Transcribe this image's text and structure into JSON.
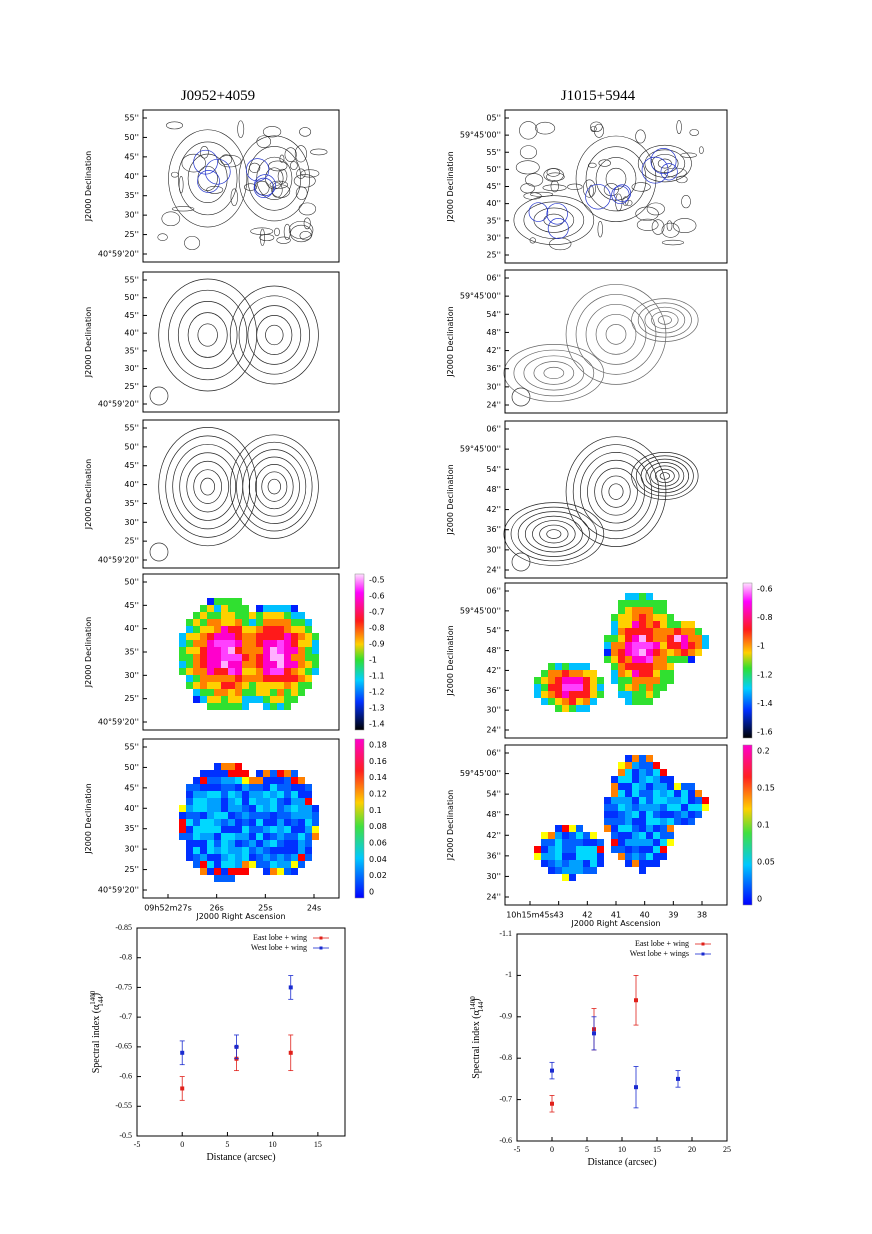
{
  "columns": [
    {
      "title": "J0952+4059",
      "panels": [
        {
          "y_label": "J2000 Declination",
          "y_ticks": [
            "55''",
            "50''",
            "45''",
            "40''",
            "35''",
            "30''",
            "25''",
            "40°59'20''"
          ]
        },
        {
          "y_label": "J2000 Declination",
          "y_ticks": [
            "55''",
            "50''",
            "45''",
            "40''",
            "35''",
            "30''",
            "25''",
            "40°59'20''"
          ]
        },
        {
          "y_label": "J2000 Declination",
          "y_ticks": [
            "55''",
            "50''",
            "45''",
            "40''",
            "35''",
            "30''",
            "25''",
            "40°59'20''"
          ]
        },
        {
          "y_label": "J2000 Declination",
          "y_ticks": [
            "50''",
            "45''",
            "40''",
            "35''",
            "30''",
            "25''",
            "40°59'20''"
          ],
          "colorbar": [
            "-0.5",
            "-0.6",
            "-0.7",
            "-0.8",
            "-0.9",
            "-1",
            "-1.1",
            "-1.2",
            "-1.3",
            "-1.4"
          ]
        },
        {
          "y_label": "J2000 Declination",
          "y_ticks": [
            "55''",
            "50''",
            "45''",
            "40''",
            "35''",
            "30''",
            "25''",
            "40°59'20''"
          ],
          "colorbar": [
            "0.18",
            "0.16",
            "0.14",
            "0.12",
            "0.1",
            "0.08",
            "0.06",
            "0.04",
            "0.02",
            "0"
          ],
          "x_ticks": [
            "09h52m27s",
            "26s",
            "25s",
            "24s"
          ],
          "x_label": "J2000 Right Ascension"
        }
      ]
    },
    {
      "title": "J1015+5944",
      "panels": [
        {
          "y_label": "J2000 Declination",
          "y_ticks": [
            "05''",
            "59°45'00''",
            "55''",
            "50''",
            "45''",
            "40''",
            "35''",
            "30''",
            "25''"
          ]
        },
        {
          "y_label": "J2000 Declination",
          "y_ticks": [
            "06''",
            "59°45'00''",
            "54''",
            "48''",
            "42''",
            "36''",
            "30''",
            "24''"
          ]
        },
        {
          "y_label": "J2000 Declination",
          "y_ticks": [
            "06''",
            "59°45'00''",
            "54''",
            "48''",
            "42''",
            "36''",
            "30''",
            "24''"
          ]
        },
        {
          "y_label": "J2000 Declination",
          "y_ticks": [
            "06''",
            "59°45'00''",
            "54''",
            "48''",
            "42''",
            "36''",
            "30''",
            "24''"
          ],
          "colorbar": [
            "-0.6",
            "-0.8",
            "-1",
            "-1.2",
            "-1.4",
            "-1.6"
          ]
        },
        {
          "y_label": "J2000 Declination",
          "y_ticks": [
            "06''",
            "59°45'00''",
            "54''",
            "48''",
            "42''",
            "36''",
            "30''",
            "24''"
          ],
          "colorbar": [
            "0.2",
            "0.15",
            "0.1",
            "0.05",
            "0"
          ],
          "x_ticks": [
            "10h15m45s",
            "43",
            "42",
            "41",
            "40",
            "39",
            "38"
          ],
          "x_label": "J2000 Right Ascension"
        }
      ]
    }
  ],
  "chart_data": [
    {
      "type": "scatter",
      "x_label": "Distance (arcsec)",
      "y_label": "Spectral index (α",
      "y_label_sup": "1400",
      "y_label_sub": "144",
      "y_label_end": ")",
      "xlim": [
        -5,
        18
      ],
      "xticks": [
        -5,
        0,
        5,
        10,
        15
      ],
      "ylim": [
        -0.5,
        -0.85
      ],
      "yticks": [
        -0.85,
        -0.8,
        -0.75,
        -0.7,
        -0.65,
        -0.6,
        -0.55,
        -0.5
      ],
      "legend": "upper right",
      "series": [
        {
          "name": "East lobe + wing",
          "color": "#e0201a",
          "x": [
            0,
            6,
            12
          ],
          "values": [
            -0.58,
            -0.63,
            -0.64
          ],
          "errors": [
            0.02,
            0.02,
            0.03
          ]
        },
        {
          "name": "West lobe + wing",
          "color": "#1a2bd0",
          "x": [
            0,
            6,
            12
          ],
          "values": [
            -0.64,
            -0.65,
            -0.75
          ],
          "errors": [
            0.02,
            0.02,
            0.02
          ]
        }
      ]
    },
    {
      "type": "scatter",
      "x_label": "Distance (arcsec)",
      "y_label": "Spectral index (α",
      "y_label_sup": "1400",
      "y_label_sub": "144",
      "y_label_end": ")",
      "xlim": [
        -5,
        25
      ],
      "xticks": [
        -5,
        0,
        5,
        10,
        15,
        20,
        25
      ],
      "ylim": [
        -0.6,
        -1.1
      ],
      "yticks": [
        -1.1,
        -1,
        -0.9,
        -0.8,
        -0.7,
        -0.6
      ],
      "legend": "upper right",
      "series": [
        {
          "name": "East lobe + wing",
          "color": "#e0201a",
          "x": [
            0,
            6,
            12
          ],
          "values": [
            -0.69,
            -0.87,
            -0.94
          ],
          "errors": [
            0.02,
            0.05,
            0.06
          ]
        },
        {
          "name": "West lobe + wings",
          "color": "#1a2bd0",
          "x": [
            0,
            6,
            12,
            18
          ],
          "values": [
            -0.77,
            -0.86,
            -0.73,
            -0.75
          ],
          "errors": [
            0.02,
            0.04,
            0.05,
            0.02
          ]
        }
      ]
    }
  ]
}
